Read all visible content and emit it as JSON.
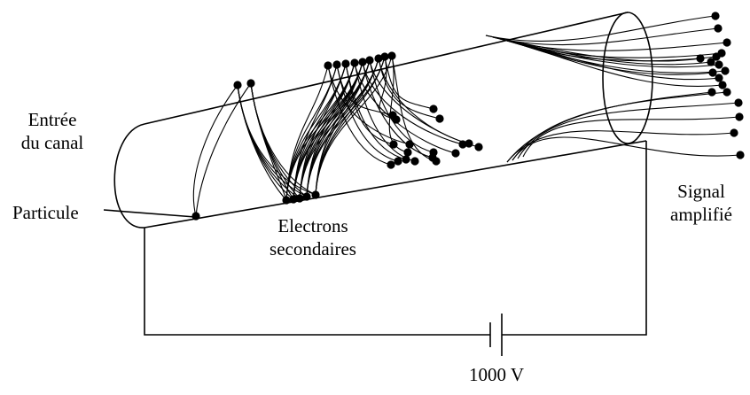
{
  "labels": {
    "entree_line1": "Entrée",
    "entree_line2": "du canal",
    "particule": "Particule",
    "electrons_line1": "Electrons",
    "electrons_line2": "secondaires",
    "signal_line1": "Signal",
    "signal_line2": "amplifié",
    "voltage": "1000 V"
  },
  "colors": {
    "ink": "#000000",
    "background": "#ffffff"
  }
}
